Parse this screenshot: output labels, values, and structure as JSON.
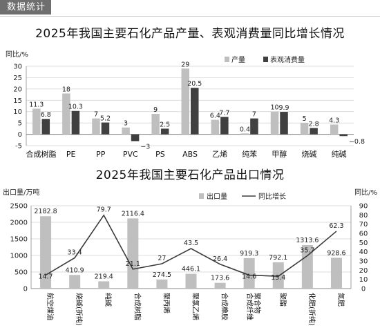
{
  "header": {
    "tag": "数据统计"
  },
  "colors": {
    "light_bar": "#bfbfbf",
    "dark_bar": "#404040",
    "line": "#3a3a3a",
    "grid": "#d0d0d0",
    "axis": "#888888"
  },
  "chart_data": [
    {
      "type": "bar",
      "title": "2025年我国主要石化产品产量、表观消费量同比增长情况",
      "ylabel": "同比/%",
      "ylim": [
        -5,
        30
      ],
      "yticks": [
        -5,
        0,
        5,
        10,
        15,
        20,
        25,
        30
      ],
      "grid": true,
      "legend": "top-center",
      "categories": [
        "合成树脂",
        "PE",
        "PP",
        "PVC",
        "PS",
        "ABS",
        "乙烯",
        "纯苯",
        "甲醇",
        "烧碱",
        "纯碱"
      ],
      "series": [
        {
          "name": "产量",
          "values": [
            11.3,
            18,
            7,
            3,
            9,
            29,
            6.4,
            0.4,
            10,
            5,
            4.3
          ]
        },
        {
          "name": "表观消费量",
          "values": [
            6.8,
            10.3,
            5.2,
            -3,
            2.5,
            20.5,
            7.7,
            7,
            9.9,
            2.8,
            -0.8
          ]
        }
      ]
    },
    {
      "type": "bar+line",
      "title": "2025年我国主要石化产品出口情况",
      "ylabel_left": "出口量/万吨",
      "ylabel_right": "同比/%",
      "ylim_left": [
        0,
        2500
      ],
      "yticks_left": [
        0,
        500,
        1000,
        1500,
        2000,
        2500
      ],
      "ylim_right": [
        0,
        90
      ],
      "yticks_right": [
        0,
        10,
        20,
        30,
        40,
        50,
        60,
        70,
        80,
        90
      ],
      "grid": true,
      "legend": "top-center",
      "categories": [
        "航空煤油",
        "烧碱(折纯)",
        "纯碱",
        "合成树脂",
        "聚丙烯",
        "聚氯乙烯",
        "合成橡胶",
        "合成纤维聚合物",
        "聚酯",
        "化肥(折纯)",
        "氮肥"
      ],
      "category_lines": [
        [
          "航空煤油"
        ],
        [
          "烧碱(折纯)"
        ],
        [
          "纯碱"
        ],
        [
          "合成树脂"
        ],
        [
          "聚丙烯"
        ],
        [
          "聚氯乙烯"
        ],
        [
          "合成橡胶"
        ],
        [
          "合成纤维",
          "聚合物"
        ],
        [
          "聚酯"
        ],
        [
          "化肥(折纯)"
        ],
        [
          "氮肥"
        ]
      ],
      "series": [
        {
          "name": "出口量",
          "kind": "bar",
          "axis": "left",
          "values": [
            2182.8,
            410.9,
            219.4,
            2116.4,
            274.5,
            446.1,
            173.6,
            919.3,
            792.1,
            1313.6,
            928.6
          ]
        },
        {
          "name": "同比增长",
          "kind": "line",
          "axis": "right",
          "values": [
            14.7,
            33.4,
            79.7,
            21.1,
            27,
            43.5,
            26.4,
            14.6,
            13.4,
            35.7,
            62.3
          ]
        }
      ]
    }
  ]
}
